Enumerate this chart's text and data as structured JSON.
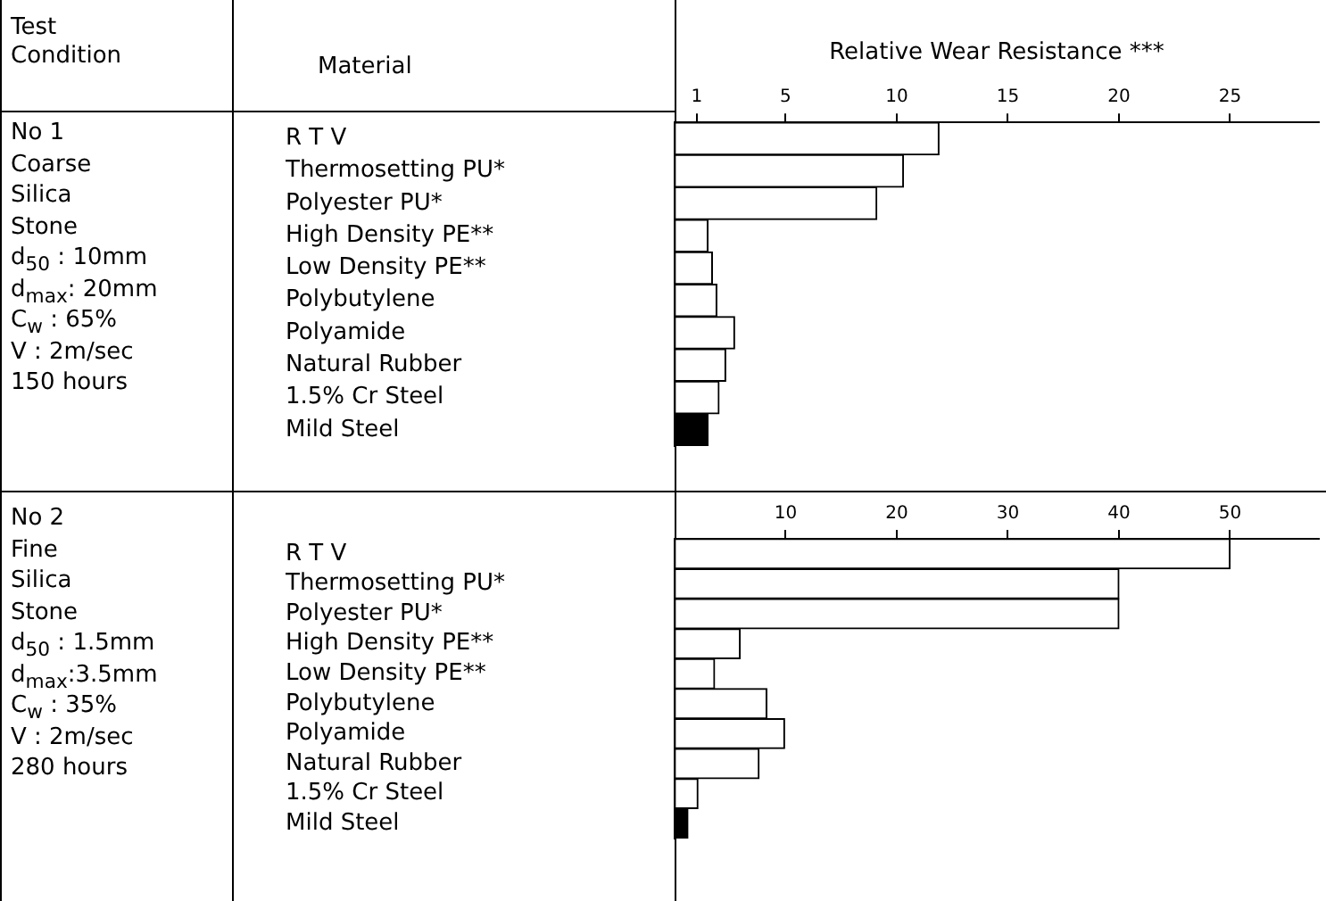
{
  "chart_data": [
    {
      "type": "bar",
      "orientation": "horizontal",
      "xlabel": "Relative Wear Resistance ***",
      "ylabel": "Material",
      "annotations": [
        "Test Condition",
        "No 1",
        "Coarse",
        "Silica",
        "Stone",
        "d$_{50}$ : 10mm",
        "d$_{max}$: 20mm",
        "C$_{w}$ : 65%",
        "V : 2m/sec",
        "150 hours"
      ],
      "categories": [
        "R T V",
        "Thermosetting PU*",
        "Polyester PU*",
        "High Density PE**",
        "Low Density PE**",
        "Polybutylene",
        "Polyamide",
        "Natural Rubber",
        "1.5% Cr Steel",
        "Mild Steel"
      ],
      "values": [
        11.9,
        10.3,
        9.1,
        1.5,
        1.7,
        1.9,
        2.7,
        2.3,
        2.0,
        1.5
      ],
      "colors": [
        "#ffffff",
        "#ffffff",
        "#ffffff",
        "#ffffff",
        "#ffffff",
        "#ffffff",
        "#ffffff",
        "#ffffff",
        "#ffffff",
        "#000000"
      ],
      "xlim": [
        0,
        29
      ],
      "xticks": [
        1,
        5,
        10,
        15,
        20,
        25
      ],
      "grid": false
    },
    {
      "type": "bar",
      "orientation": "horizontal",
      "annotations": [
        "No 2",
        "Fine",
        "Silica",
        "Stone",
        "d$_{50}$ : 1.5mm",
        "d$_{max}$:3.5mm",
        "C$_{w}$ : 35%",
        "V : 2m/sec",
        "280 hours"
      ],
      "categories": [
        "R T V",
        "Thermosetting PU*",
        "Polyester PU*",
        "High Density PE**",
        "Low Density PE**",
        "Polybutylene",
        "Polyamide",
        "Natural Rubber",
        "1.5% Cr Steel",
        "Mild Steel"
      ],
      "values": [
        50,
        40,
        40,
        5.9,
        3.6,
        8.3,
        9.9,
        7.6,
        2.1,
        1.2
      ],
      "colors": [
        "#ffffff",
        "#ffffff",
        "#ffffff",
        "#ffffff",
        "#ffffff",
        "#ffffff",
        "#ffffff",
        "#ffffff",
        "#ffffff",
        "#000000"
      ],
      "xlim": [
        0,
        58
      ],
      "xticks": [
        10,
        20,
        30,
        40,
        50
      ],
      "grid": false
    }
  ]
}
